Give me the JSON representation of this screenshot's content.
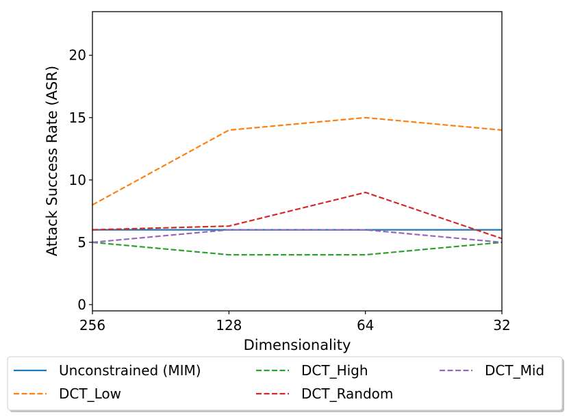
{
  "chart_data": {
    "type": "line",
    "title": "",
    "xlabel": "Dimensionality",
    "ylabel": "Attack Success Rate (ASR)",
    "categories": [
      "256",
      "128",
      "64",
      "32"
    ],
    "ylim": [
      -0.5,
      23.5
    ],
    "yticks": [
      0,
      5,
      10,
      15,
      20
    ],
    "grid": false,
    "legend_position": "bottom",
    "series": [
      {
        "name": "Unconstrained (MIM)",
        "values": [
          6,
          6,
          6,
          6
        ],
        "color": "#1f77b4",
        "style": "solid"
      },
      {
        "name": "DCT_Low",
        "values": [
          8,
          14,
          15,
          14
        ],
        "color": "#ff7f0e",
        "style": "dashed"
      },
      {
        "name": "DCT_High",
        "values": [
          5,
          4,
          4,
          5
        ],
        "color": "#2ca02c",
        "style": "dashed"
      },
      {
        "name": "DCT_Random",
        "values": [
          6,
          6.3,
          9,
          5.3
        ],
        "color": "#d62728",
        "style": "dashed"
      },
      {
        "name": "DCT_Mid",
        "values": [
          5,
          6,
          6,
          5
        ],
        "color": "#9467bd",
        "style": "dashed"
      }
    ]
  }
}
